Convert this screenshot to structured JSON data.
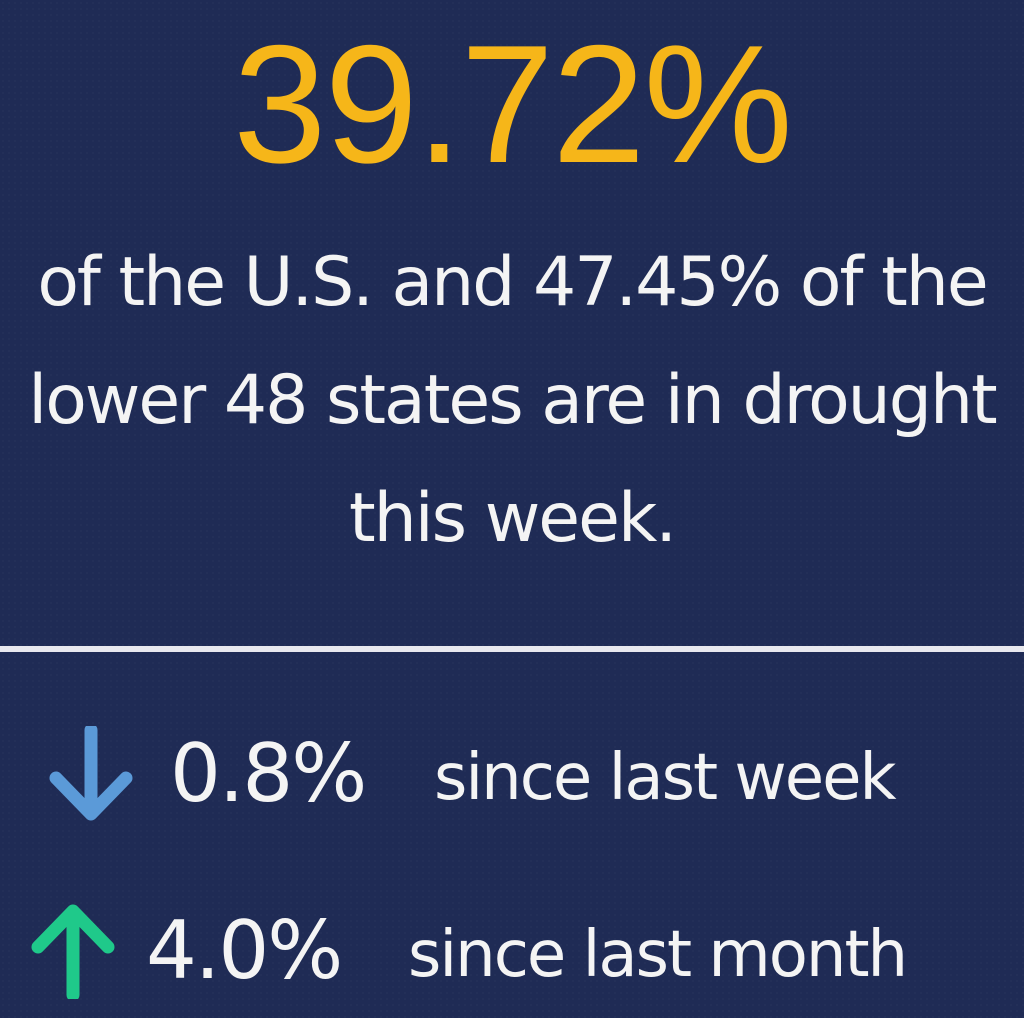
{
  "headline": {
    "percent": "39.72%",
    "color": "#f6b619"
  },
  "summary": {
    "text": "of the U.S. and 47.45% of the lower 48 states are in drought this week."
  },
  "changes": [
    {
      "direction": "down",
      "icon": "arrow-down-icon",
      "icon_color": "#5b9ad8",
      "value": "0.8%",
      "label": "since last week"
    },
    {
      "direction": "up",
      "icon": "arrow-up-icon",
      "icon_color": "#1fc98a",
      "value": "4.0%",
      "label": "since last month"
    }
  ],
  "colors": {
    "background": "#1f2b55",
    "text": "#f4f4f4",
    "divider": "#e8e8ee"
  }
}
